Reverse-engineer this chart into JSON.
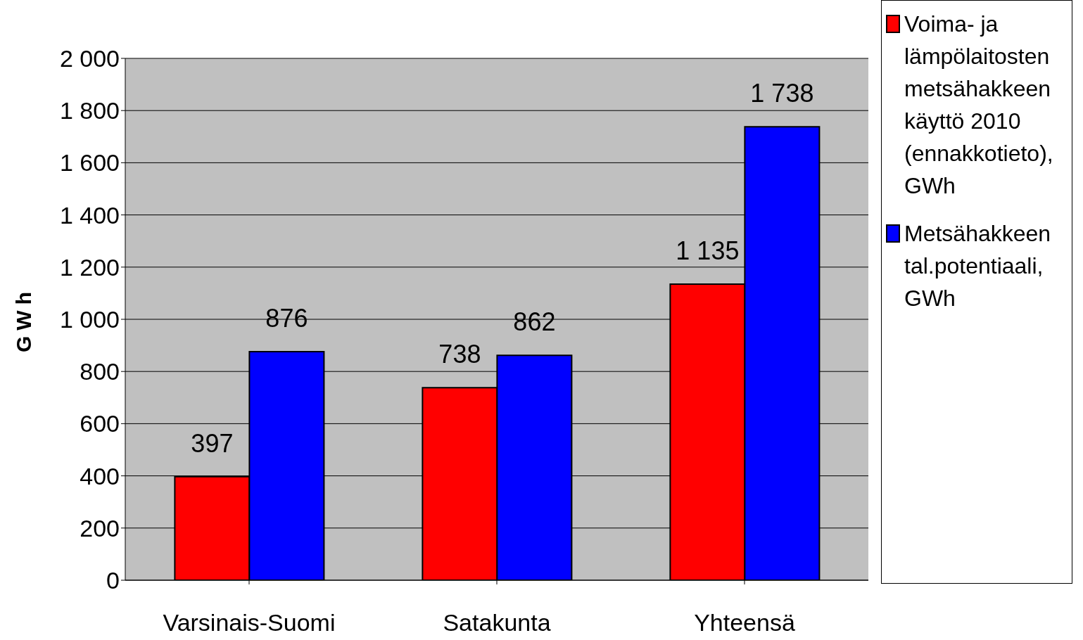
{
  "chart_data": {
    "type": "bar",
    "ylabel": "GWh",
    "categories": [
      "Varsinais-Suomi",
      "Satakunta",
      "Yhteensä"
    ],
    "series": [
      {
        "name": "Voima- ja lämpölaitosten metsähakkeen käyttö 2010 (ennakkotieto), GWh",
        "color": "#ff0000",
        "values": [
          397,
          738,
          1135
        ],
        "value_labels": [
          "397",
          "738",
          "1 135"
        ]
      },
      {
        "name": "Metsähakkeen tal.potentiaali, GWh",
        "color": "#0000ff",
        "values": [
          876,
          862,
          1738
        ],
        "value_labels": [
          "876",
          "862",
          "1 738"
        ]
      }
    ],
    "ylim": [
      0,
      2000
    ],
    "yticks": [
      0,
      200,
      400,
      600,
      800,
      {
        "value": 1000,
        "label": "1 000"
      },
      {
        "value": 1200,
        "label": "1 200"
      },
      {
        "value": 1400,
        "label": "1 400"
      },
      {
        "value": 1600,
        "label": "1 600"
      },
      {
        "value": 1800,
        "label": "1 800"
      },
      {
        "value": 2000,
        "label": "2 000"
      }
    ],
    "grid": "y",
    "legend": "right"
  }
}
